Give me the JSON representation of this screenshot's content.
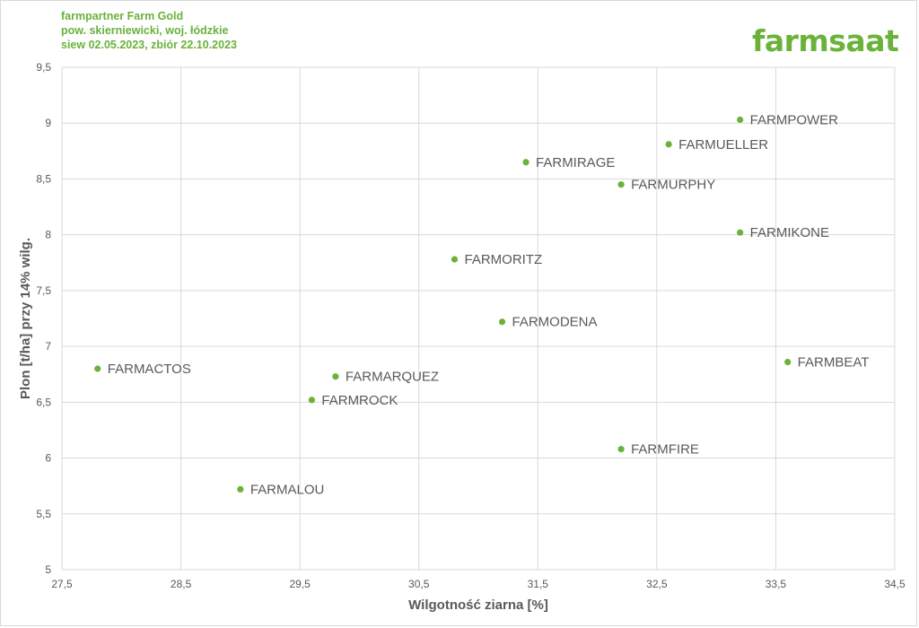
{
  "header": {
    "lines": [
      "farmpartner Farm Gold",
      "pow. skierniewicki, woj. łódzkie",
      "siew 02.05.2023, zbiór 22.10.2023"
    ],
    "logo": "farmsaat"
  },
  "colors": {
    "accent": "#6ab23a",
    "grid": "#d9d9d9",
    "text": "#595959"
  },
  "chart_data": {
    "type": "scatter",
    "xlabel": "Wilgotność ziarna [%]",
    "ylabel": "Plon [t/ha] przy 14% wilg.",
    "xlim": [
      27.5,
      34.5
    ],
    "ylim": [
      5,
      9.5
    ],
    "x_ticks": [
      "27,5",
      "28,5",
      "29,5",
      "30,5",
      "31,5",
      "32,5",
      "33,5",
      "34,5"
    ],
    "y_ticks": [
      "5",
      "5,5",
      "6",
      "6,5",
      "7",
      "7,5",
      "8",
      "8,5",
      "9",
      "9,5"
    ],
    "grid": true,
    "points": [
      {
        "label": "FARMPOWER",
        "x": 33.2,
        "y": 9.03
      },
      {
        "label": "FARMUELLER",
        "x": 32.6,
        "y": 8.81
      },
      {
        "label": "FARMIRAGE",
        "x": 31.4,
        "y": 8.65
      },
      {
        "label": "FARMURPHY",
        "x": 32.2,
        "y": 8.45
      },
      {
        "label": "FARMIKONE",
        "x": 33.2,
        "y": 8.02
      },
      {
        "label": "FARMORITZ",
        "x": 30.8,
        "y": 7.78
      },
      {
        "label": "FARMODENA",
        "x": 31.2,
        "y": 7.22
      },
      {
        "label": "FARMACTOS",
        "x": 27.8,
        "y": 6.8
      },
      {
        "label": "FARMBEAT",
        "x": 33.6,
        "y": 6.86
      },
      {
        "label": "FARMARQUEZ",
        "x": 29.8,
        "y": 6.73
      },
      {
        "label": "FARMROCK",
        "x": 29.6,
        "y": 6.52
      },
      {
        "label": "FARMFIRE",
        "x": 32.2,
        "y": 6.08
      },
      {
        "label": "FARMALOU",
        "x": 29.0,
        "y": 5.72
      }
    ]
  }
}
